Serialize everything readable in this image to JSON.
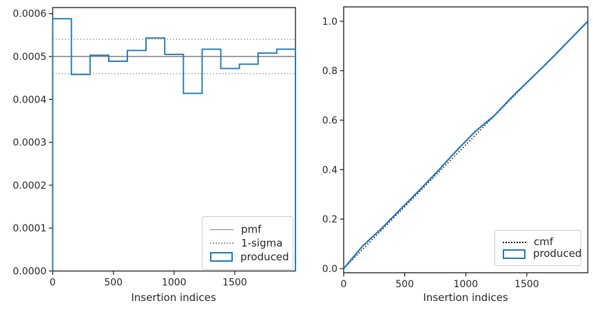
{
  "figure": {
    "background": "#ffffff",
    "text_color": "#262626",
    "accent_blue": "#1f77b4",
    "pmf_gray": "#7f7f7f",
    "sigma_gray": "#999999",
    "cmf_black": "#000000"
  },
  "chart_data": [
    {
      "type": "bar",
      "subtype": "step-histogram",
      "title": "",
      "xlabel": "Insertion indices",
      "ylabel": "",
      "grid": false,
      "legend_position": "lower right",
      "xlim": [
        0,
        2000
      ],
      "ylim": [
        0,
        0.000614
      ],
      "xticks": [
        0,
        500,
        1000,
        1500
      ],
      "xtick_labels": [
        "0",
        "500",
        "1000",
        "1500"
      ],
      "yticks": [
        0,
        0.0001,
        0.0002,
        0.0003,
        0.0004,
        0.0005,
        0.0006
      ],
      "ytick_labels": [
        "0.0000",
        "0.0001",
        "0.0002",
        "0.0003",
        "0.0004",
        "0.0005",
        "0.0006"
      ],
      "bin_edges": [
        0,
        154,
        308,
        462,
        615,
        769,
        923,
        1077,
        1231,
        1385,
        1538,
        1692,
        1846,
        2000
      ],
      "series": [
        {
          "name": "pmf",
          "type": "hline",
          "y": 0.0005,
          "style": "solid",
          "color": "#7f7f7f",
          "width": 1.5
        },
        {
          "name": "1-sigma",
          "type": "hline-pair",
          "y_upper": 0.00054,
          "y_lower": 0.00046,
          "style": "dotted",
          "color": "#999999",
          "width": 1.6
        },
        {
          "name": "produced",
          "type": "step",
          "color": "#1f77b4",
          "width": 1.9,
          "values": [
            0.000588,
            0.000458,
            0.000503,
            0.000489,
            0.000514,
            0.000543,
            0.000505,
            0.000414,
            0.000517,
            0.000472,
            0.000482,
            0.000508,
            0.000517
          ]
        }
      ],
      "legend": {
        "items": [
          {
            "label": "pmf",
            "swatch": "line-solid-gray"
          },
          {
            "label": "1-sigma",
            "swatch": "line-dotted-gray"
          },
          {
            "label": "produced",
            "swatch": "rect-blue"
          }
        ]
      }
    },
    {
      "type": "line",
      "subtype": "cumulative",
      "title": "",
      "xlabel": "Insertion indices",
      "ylabel": "",
      "grid": false,
      "legend_position": "lower right",
      "xlim": [
        0,
        2000
      ],
      "ylim": [
        -0.017,
        1.058
      ],
      "xticks": [
        0,
        500,
        1000,
        1500
      ],
      "xtick_labels": [
        "0",
        "500",
        "1000",
        "1500"
      ],
      "yticks": [
        0,
        0.2,
        0.4,
        0.6,
        0.8,
        1.0
      ],
      "ytick_labels": [
        "0.0",
        "0.2",
        "0.4",
        "0.6",
        "0.8",
        "1.0"
      ],
      "series": [
        {
          "name": "cmf",
          "type": "line",
          "style": "dotted",
          "color": "#000000",
          "width": 1.6,
          "x": [
            0,
            2000
          ],
          "y": [
            0,
            1.0
          ]
        },
        {
          "name": "produced",
          "type": "line",
          "style": "solid",
          "color": "#1f77b4",
          "width": 2.2,
          "x": [
            0,
            154,
            308,
            462,
            615,
            769,
            923,
            1077,
            1231,
            1385,
            1538,
            1692,
            1846,
            2000
          ],
          "y": [
            0,
            0.09,
            0.161,
            0.238,
            0.314,
            0.393,
            0.476,
            0.554,
            0.617,
            0.697,
            0.77,
            0.844,
            0.922,
            1.0
          ]
        }
      ],
      "legend": {
        "items": [
          {
            "label": "cmf",
            "swatch": "line-dotted-black"
          },
          {
            "label": "produced",
            "swatch": "rect-blue"
          }
        ]
      }
    }
  ]
}
